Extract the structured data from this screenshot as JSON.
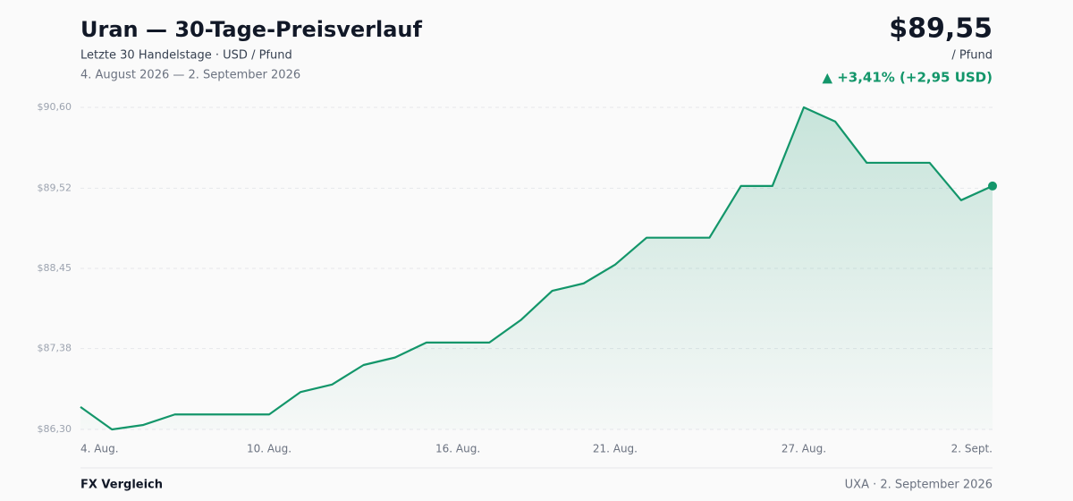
{
  "header": {
    "title": "Uran — 30-Tage-Preisverlauf",
    "subtitle": "Letzte 30 Handelstage · USD / Pfund",
    "range": "4. August 2026 — 2. September 2026",
    "price": "$89,55",
    "unit": "/ Pfund",
    "change": "▲ +3,41% (+2,95 USD)"
  },
  "chart_data": {
    "type": "line",
    "categories": [
      "4. Aug.",
      null,
      null,
      null,
      null,
      null,
      "10. Aug.",
      null,
      null,
      null,
      null,
      null,
      "16. Aug.",
      null,
      null,
      null,
      null,
      "21. Aug.",
      null,
      null,
      null,
      null,
      null,
      "27. Aug.",
      null,
      null,
      null,
      null,
      null,
      "2. Sept."
    ],
    "series": [
      {
        "name": "Uran",
        "color": "#13966a",
        "values": [
          86.6,
          86.3,
          86.36,
          86.5,
          86.5,
          86.5,
          86.5,
          86.8,
          86.9,
          87.16,
          87.26,
          87.46,
          87.46,
          87.46,
          87.76,
          88.15,
          88.25,
          88.5,
          88.86,
          88.86,
          88.86,
          89.55,
          89.55,
          90.6,
          90.41,
          89.86,
          89.86,
          89.86,
          89.36,
          89.55
        ]
      }
    ],
    "ylim": [
      86.3,
      90.6
    ],
    "yticks": [
      {
        "value": 86.3,
        "label": "$86,30"
      },
      {
        "value": 87.38,
        "label": "$87,38"
      },
      {
        "value": 88.45,
        "label": "$88,45"
      },
      {
        "value": 89.52,
        "label": "$89,52"
      },
      {
        "value": 90.6,
        "label": "$90,60"
      }
    ],
    "grid": true
  },
  "footer": {
    "left": "FX Vergleich",
    "right": "UXA · 2. September 2026"
  }
}
